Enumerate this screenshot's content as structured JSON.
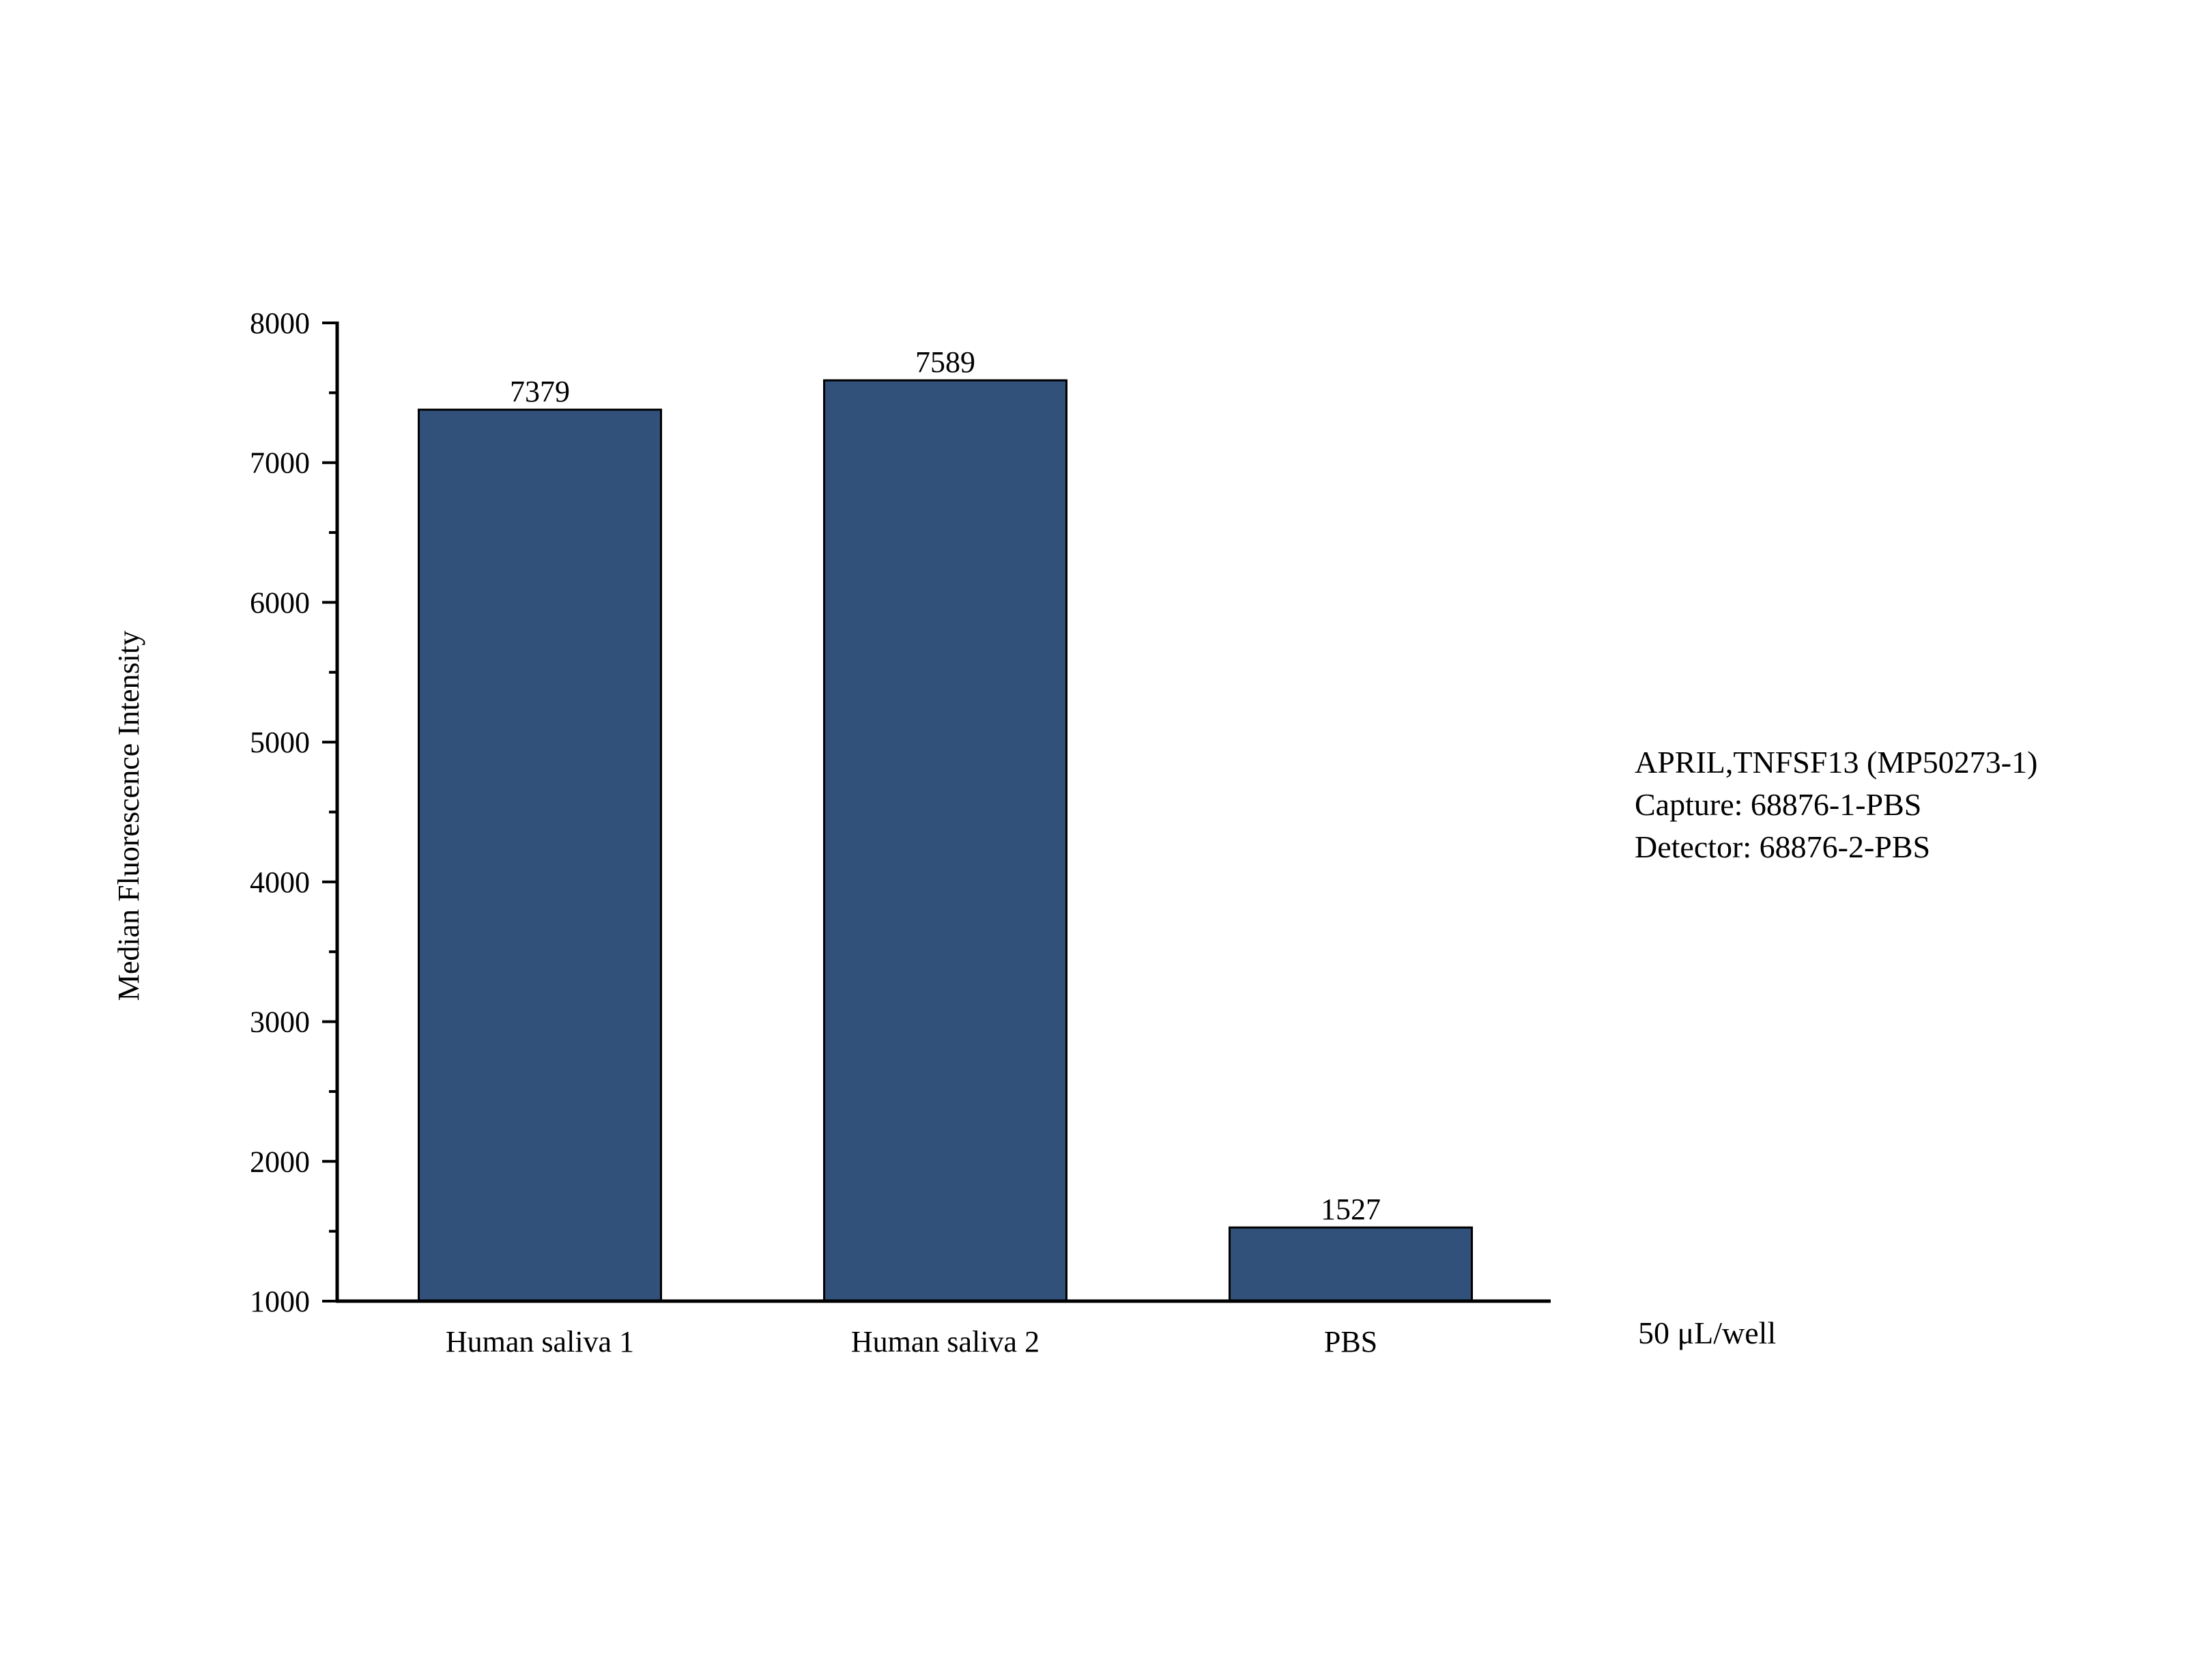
{
  "chart_data": {
    "type": "bar",
    "categories": [
      "Human saliva 1",
      "Human saliva 2",
      "PBS"
    ],
    "values": [
      7379,
      7589,
      1527
    ],
    "data_labels": [
      "7379",
      "7589",
      "1527"
    ],
    "title": "",
    "xlabel": "",
    "ylabel": "Median Fluorescence Intensity",
    "ylim": [
      1000,
      8000
    ],
    "yticks": [
      1000,
      2000,
      3000,
      4000,
      5000,
      6000,
      7000,
      8000
    ],
    "ytick_labels": [
      "1000",
      "2000",
      "3000",
      "4000",
      "5000",
      "6000",
      "7000",
      "8000"
    ],
    "grid": false,
    "bar_color": "#31507a",
    "edge_color": "#000000"
  },
  "annotations": {
    "line1": "APRIL,TNFSF13 (MP50273-1)",
    "line2": "Capture: 68876-1-PBS",
    "line3": "Detector: 68876-2-PBS",
    "volume": "50 μL/well"
  }
}
